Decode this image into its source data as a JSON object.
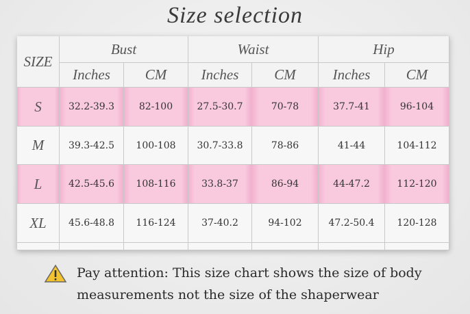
{
  "title": "Size selection",
  "table": {
    "size_header": "SIZE",
    "groups": [
      "Bust",
      "Waist",
      "Hip"
    ],
    "subheaders": [
      "Inches",
      "CM",
      "Inches",
      "CM",
      "Inches",
      "CM"
    ],
    "rows": [
      [
        "S",
        "32.2-39.3",
        "82-100",
        "27.5-30.7",
        "70-78",
        "37.7-41",
        "96-104"
      ],
      [
        "M",
        "39.3-42.5",
        "100-108",
        "30.7-33.8",
        "78-86",
        "41-44",
        "104-112"
      ],
      [
        "L",
        "42.5-45.6",
        "108-116",
        "33.8-37",
        "86-94",
        "44-47.2",
        "112-120"
      ],
      [
        "XL",
        "45.6-48.8",
        "116-124",
        "37-40.2",
        "94-102",
        "47.2-50.4",
        "120-128"
      ]
    ]
  },
  "note": [
    "Pay attention: This size chart shows the size of body",
    "measurements not the size of the shaperwear"
  ]
}
